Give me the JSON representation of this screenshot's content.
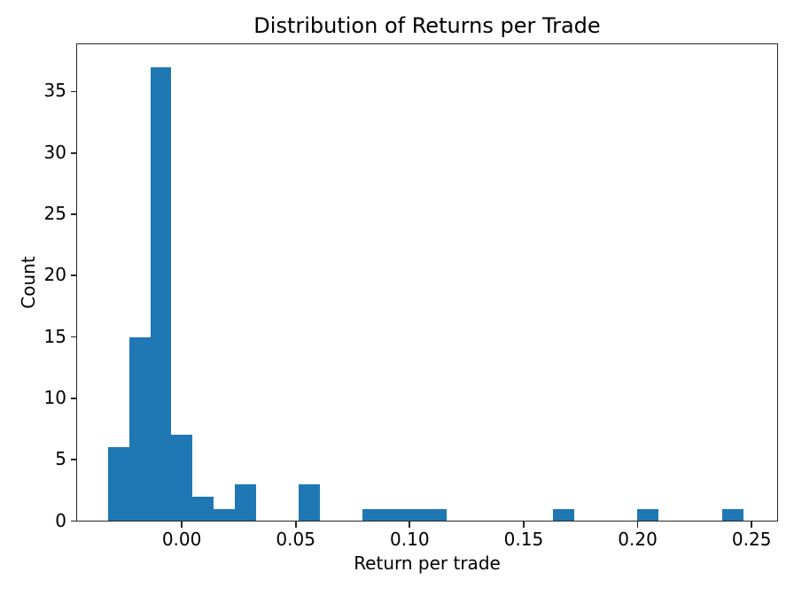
{
  "chart_data": {
    "type": "bar",
    "subtype": "histogram",
    "title": "Distribution of Returns per Trade",
    "xlabel": "Return per trade",
    "ylabel": "Count",
    "bar_color": "#1f77b4",
    "axis_color": "#262626",
    "text_color": "#000000",
    "background_color": "#ffffff",
    "grid": false,
    "legend": null,
    "n_bins": 30,
    "bin_start": -0.0324,
    "bin_width": 0.009293,
    "bin_counts": [
      6,
      15,
      37,
      7,
      2,
      1,
      3,
      0,
      0,
      3,
      0,
      0,
      1,
      1,
      1,
      1,
      0,
      0,
      0,
      0,
      0,
      1,
      0,
      0,
      0,
      1,
      0,
      0,
      0,
      1
    ],
    "xlim": [
      -0.0459,
      0.2612
    ],
    "ylim": [
      0,
      38.85
    ],
    "xticks": {
      "values": [
        0.0,
        0.05,
        0.1,
        0.15,
        0.2,
        0.25
      ],
      "labels": [
        "0.00",
        "0.05",
        "0.10",
        "0.15",
        "0.20",
        "0.25"
      ]
    },
    "yticks": {
      "values": [
        0,
        5,
        10,
        15,
        20,
        25,
        30,
        35
      ],
      "labels": [
        "0",
        "5",
        "10",
        "15",
        "20",
        "25",
        "30",
        "35"
      ]
    }
  }
}
